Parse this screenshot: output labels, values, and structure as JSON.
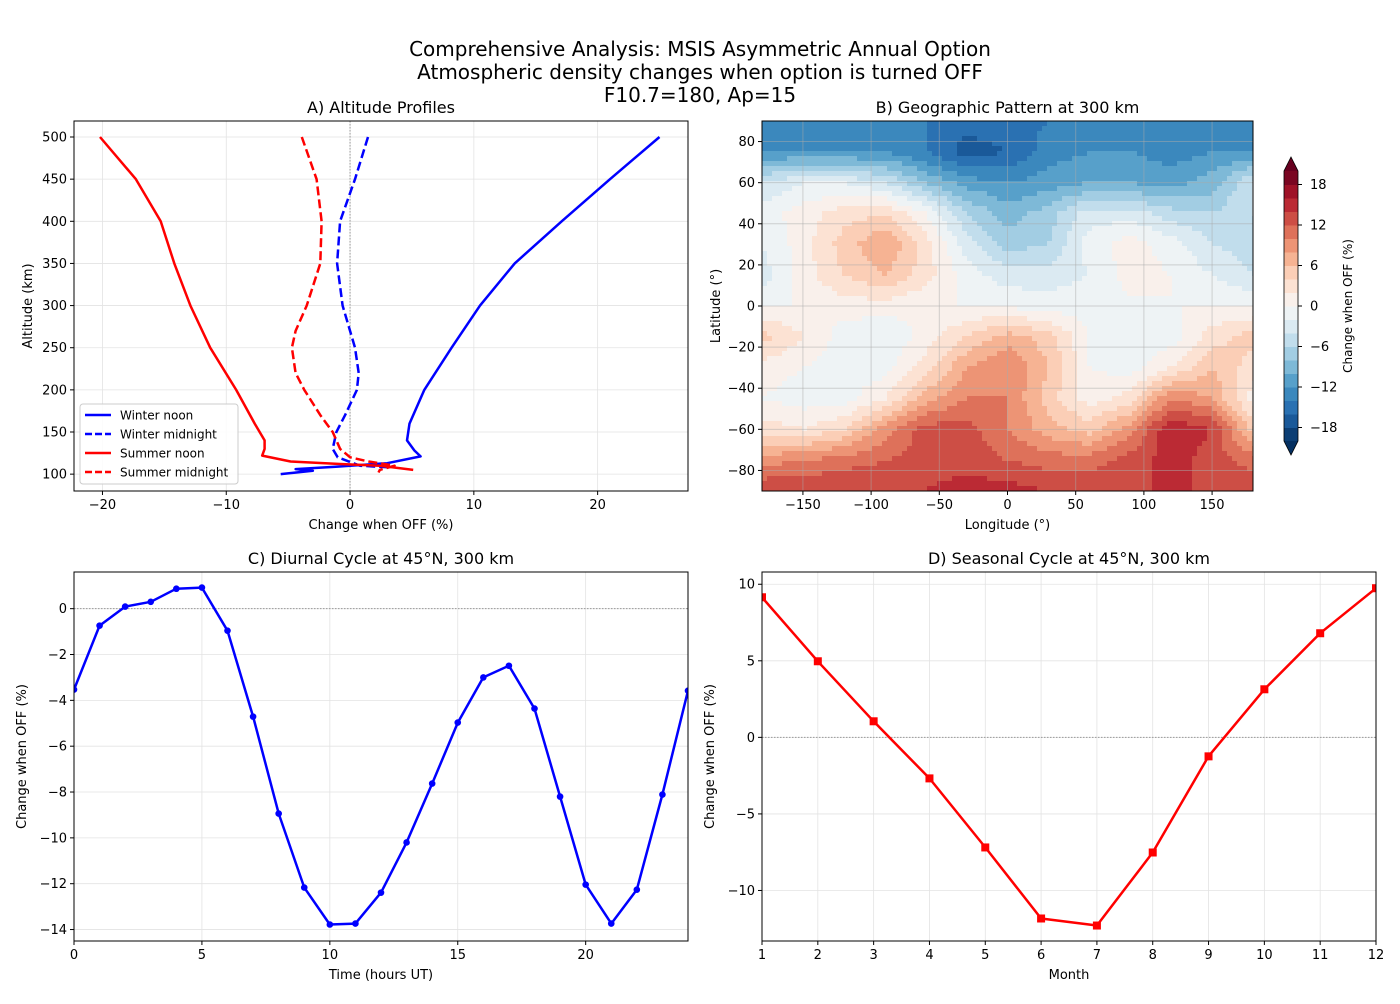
{
  "title_lines": [
    "Comprehensive Analysis: MSIS Asymmetric Annual Option",
    "Atmospheric density changes when option is turned OFF",
    "F10.7=180, Ap=15"
  ],
  "colors": {
    "blue": "#0000ff",
    "red": "#ff0000",
    "grid": "#e3e3e3",
    "zero_line": "#999999"
  },
  "chart_data": [
    {
      "type": "line",
      "title": "A) Altitude Profiles",
      "xlabel": "Change when OFF (%)",
      "ylabel": "Altitude (km)",
      "xlim": [
        -22.3,
        27.3
      ],
      "ylim": [
        80,
        519
      ],
      "xticks": [
        -20,
        -10,
        0,
        10,
        20
      ],
      "yticks": [
        100,
        150,
        200,
        250,
        300,
        350,
        400,
        450,
        500
      ],
      "grid": true,
      "legend_placement": "lower-left",
      "series": [
        {
          "name": "Winter noon",
          "color": "#0000ff",
          "style": "solid",
          "x": [
            25,
            21,
            17.1,
            13.3,
            10.5,
            8.2,
            6,
            4.8,
            4.6,
            5.2,
            5.7,
            3,
            -1,
            -4.4,
            -3,
            -5.6
          ],
          "y": [
            500,
            450,
            400,
            350,
            300,
            250,
            200,
            160,
            140,
            128,
            121,
            113,
            109,
            106,
            104,
            100
          ]
        },
        {
          "name": "Winter midnight",
          "color": "#0000ff",
          "style": "dashed",
          "x": [
            1.45,
            0.4,
            -0.8,
            -1.05,
            -0.6,
            0.4,
            0.7,
            0.55,
            -0.4,
            -1.1,
            -1.4,
            -1.0,
            0.8,
            3.2
          ],
          "y": [
            500,
            450,
            400,
            350,
            300,
            250,
            220,
            200,
            170,
            150,
            130,
            120,
            110,
            108
          ]
        },
        {
          "name": "Summer noon",
          "color": "#ff0000",
          "style": "solid",
          "x": [
            -20.2,
            -17.3,
            -15.3,
            -14.2,
            -12.9,
            -11.3,
            -9.2,
            -7.7,
            -6.9,
            -6.9,
            -7.1,
            -4.8,
            -0.8,
            2.4,
            5.1
          ],
          "y": [
            500,
            450,
            400,
            350,
            300,
            250,
            200,
            160,
            140,
            130,
            122,
            115,
            112,
            110,
            105
          ]
        },
        {
          "name": "Summer midnight",
          "color": "#ff0000",
          "style": "dashed",
          "x": [
            -3.9,
            -2.7,
            -2.3,
            -2.4,
            -3.5,
            -4.4,
            -4.7,
            -4.4,
            -3.7,
            -2.4,
            -1.4,
            -0.8,
            0,
            1.5,
            3.6,
            2.4,
            2.3
          ],
          "y": [
            500,
            450,
            400,
            350,
            300,
            270,
            250,
            220,
            200,
            170,
            150,
            130,
            120,
            115,
            110,
            105,
            102
          ]
        }
      ]
    },
    {
      "type": "heatmap",
      "title": "B) Geographic Pattern at 300 km",
      "xlabel": "Longitude (°)",
      "ylabel": "Latitude (°)",
      "xlim": [
        -180,
        180
      ],
      "ylim": [
        -90,
        90
      ],
      "xticks": [
        -150,
        -100,
        -50,
        0,
        50,
        100,
        150
      ],
      "yticks": [
        -80,
        -60,
        -40,
        -20,
        0,
        20,
        40,
        60,
        80
      ],
      "colormap": "RdBu_r",
      "colorbar_label": "Change when OFF (%)",
      "colorbar_range": [
        -20,
        20
      ],
      "colorbar_ticks": [
        -18,
        -12,
        -6,
        0,
        6,
        12,
        18
      ],
      "lon": [
        -180,
        -150,
        -120,
        -90,
        -60,
        -30,
        0,
        30,
        60,
        90,
        120,
        150,
        180
      ],
      "lat": [
        90,
        75,
        60,
        45,
        30,
        15,
        0,
        -15,
        -30,
        -45,
        -60,
        -75,
        -90
      ],
      "values": [
        [
          -13,
          -13,
          -13,
          -13,
          -14,
          -15,
          -15,
          -14,
          -13,
          -13,
          -13,
          -13,
          -13
        ],
        [
          -12,
          -12,
          -12,
          -12,
          -14,
          -17,
          -16,
          -13,
          -12,
          -12,
          -13,
          -12,
          -12
        ],
        [
          -4,
          -2,
          -2,
          -4,
          -8,
          -11,
          -12,
          -11,
          -10,
          -10,
          -11,
          -9,
          -4
        ],
        [
          -1,
          1,
          3,
          4,
          0,
          -6,
          -9,
          -7,
          -3,
          -3,
          -5,
          -6,
          -4
        ],
        [
          -2,
          1,
          5,
          8,
          3,
          -3,
          -7,
          -6,
          -1,
          1,
          -1,
          -4,
          -5
        ],
        [
          -3,
          1,
          4,
          6,
          3,
          -1,
          -3,
          -3,
          -2,
          1,
          0,
          -2,
          -4
        ],
        [
          0,
          0,
          1,
          1,
          0,
          0,
          -0.5,
          -1,
          -1,
          -0.5,
          0,
          0,
          0
        ],
        [
          5,
          2,
          -1,
          -2,
          1,
          4,
          7,
          5,
          0,
          -2,
          -1,
          3,
          5
        ],
        [
          1,
          0,
          -1,
          -1,
          3,
          8,
          10,
          6,
          0,
          -1,
          2,
          6,
          3
        ],
        [
          0,
          -1,
          -1,
          2,
          7,
          10,
          10,
          5,
          1,
          3,
          10,
          8,
          1
        ],
        [
          3,
          2,
          4,
          9,
          13,
          13,
          10,
          7,
          5,
          9,
          16,
          14,
          5
        ],
        [
          9,
          10,
          11,
          12,
          13,
          13,
          12,
          11,
          11,
          13,
          15,
          13,
          11
        ],
        [
          14,
          14,
          14,
          14,
          14,
          15,
          15,
          14,
          14,
          14,
          14,
          14,
          14
        ]
      ]
    },
    {
      "type": "line",
      "title": "C) Diurnal Cycle at 45°N, 300 km",
      "xlabel": "Time (hours UT)",
      "ylabel": "Change when OFF (%)",
      "xlim": [
        0,
        24
      ],
      "ylim": [
        -14.5,
        1.6
      ],
      "xticks": [
        0,
        5,
        10,
        15,
        20
      ],
      "yticks": [
        -14,
        -12,
        -10,
        -8,
        -6,
        -4,
        -2,
        0
      ],
      "grid": true,
      "marker": "circle",
      "color": "#0000ff",
      "x": [
        0,
        1,
        2,
        3,
        4,
        5,
        6,
        7,
        8,
        9,
        10,
        11,
        12,
        13,
        14,
        15,
        16,
        17,
        18,
        19,
        20,
        21,
        22,
        23,
        24
      ],
      "y": [
        -3.53,
        -0.74,
        0.09,
        0.3,
        0.87,
        0.92,
        -0.96,
        -4.71,
        -8.94,
        -12.17,
        -13.78,
        -13.74,
        -12.39,
        -10.2,
        -7.63,
        -4.97,
        -3.0,
        -2.49,
        -4.36,
        -8.2,
        -12.04,
        -13.74,
        -12.26,
        -8.11,
        -3.58
      ]
    },
    {
      "type": "line",
      "title": "D) Seasonal Cycle at 45°N, 300 km",
      "xlabel": "Month",
      "ylabel": "Change when OFF (%)",
      "xlim": [
        1,
        12
      ],
      "ylim": [
        -13.3,
        10.8
      ],
      "xticks": [
        1,
        2,
        3,
        4,
        5,
        6,
        7,
        8,
        9,
        10,
        11,
        12
      ],
      "yticks": [
        -10,
        -5,
        0,
        5,
        10
      ],
      "grid": true,
      "marker": "square",
      "color": "#ff0000",
      "x": [
        1,
        2,
        3,
        4,
        5,
        6,
        7,
        8,
        9,
        10,
        11,
        12
      ],
      "y": [
        9.15,
        4.97,
        1.05,
        -2.68,
        -7.19,
        -11.83,
        -12.29,
        -7.52,
        -1.24,
        3.14,
        6.8,
        9.74
      ]
    }
  ]
}
